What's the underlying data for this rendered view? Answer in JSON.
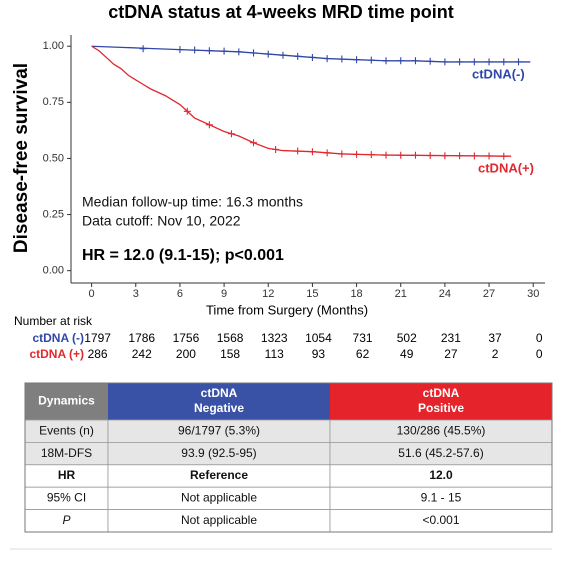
{
  "chart_data": {
    "type": "line",
    "title": "ctDNA status at 4-weeks MRD time point",
    "x_label": "Time from Surgery (Months)",
    "y_label": "Disease-free survival",
    "xlim": [
      -1.4,
      30.8
    ],
    "ylim": [
      -0.055,
      1.05
    ],
    "xticks": [
      0,
      3,
      6,
      9,
      12,
      15,
      18,
      21,
      24,
      27,
      30
    ],
    "yticks": [
      {
        "value": 0,
        "label": "0.00"
      },
      {
        "value": 0.25,
        "label": "0.25"
      },
      {
        "value": 0.5,
        "label": "0.50"
      },
      {
        "value": 0.75,
        "label": "0.75"
      },
      {
        "value": 1,
        "label": "1.00"
      }
    ],
    "annotations": [
      "Median follow-up time: 16.3 months",
      "Data cutoff: Nov 10, 2022",
      "HR = 12.0 (9.1-15); p<0.001"
    ],
    "series": [
      {
        "name": "ctDNA(-)",
        "color": "#3047a8",
        "x": [
          0,
          2,
          4,
          6,
          8,
          10,
          12,
          14,
          16,
          18,
          20,
          22,
          24,
          26,
          28,
          29.8
        ],
        "values": [
          1,
          0.995,
          0.99,
          0.985,
          0.98,
          0.975,
          0.965,
          0.955,
          0.945,
          0.94,
          0.935,
          0.935,
          0.93,
          0.93,
          0.93,
          0.93
        ],
        "censor": {
          "x": [
            3.5,
            6,
            7,
            8,
            9,
            10,
            11,
            12,
            13,
            14,
            15,
            16,
            17,
            18,
            19,
            20,
            21,
            22,
            23,
            24,
            25,
            26,
            27,
            28,
            29
          ],
          "values": [
            0.989,
            0.985,
            0.983,
            0.98,
            0.978,
            0.975,
            0.97,
            0.965,
            0.96,
            0.955,
            0.95,
            0.945,
            0.943,
            0.94,
            0.938,
            0.935,
            0.935,
            0.935,
            0.933,
            0.93,
            0.93,
            0.93,
            0.93,
            0.93,
            0.93
          ]
        }
      },
      {
        "name": "ctDNA(+)",
        "color": "#e0282e",
        "x": [
          0,
          0.5,
          1,
          1.5,
          2,
          2.5,
          3,
          3.5,
          4,
          5,
          6,
          7,
          8,
          9,
          10,
          11,
          12,
          13,
          15,
          17,
          20,
          28.5
        ],
        "values": [
          1,
          0.98,
          0.95,
          0.92,
          0.9,
          0.87,
          0.85,
          0.83,
          0.81,
          0.78,
          0.74,
          0.68,
          0.65,
          0.62,
          0.6,
          0.57,
          0.545,
          0.535,
          0.53,
          0.52,
          0.515,
          0.51
        ],
        "censor": {
          "x": [
            6.5,
            8,
            9.5,
            11,
            12.5,
            14,
            15,
            16,
            17,
            18,
            19,
            20,
            21,
            22,
            23,
            24,
            25,
            26,
            27,
            28
          ],
          "values": [
            0.71,
            0.65,
            0.61,
            0.57,
            0.54,
            0.533,
            0.53,
            0.525,
            0.52,
            0.518,
            0.517,
            0.515,
            0.514,
            0.514,
            0.513,
            0.512,
            0.512,
            0.511,
            0.511,
            0.51
          ]
        }
      }
    ]
  },
  "risk_table": {
    "title": "Number  at risk",
    "rows": [
      {
        "name": "ctDNA (-)",
        "values": [
          1797,
          1786,
          1756,
          1568,
          1323,
          1054,
          731,
          502,
          231,
          37,
          0
        ]
      },
      {
        "name": "ctDNA (+)",
        "values": [
          286,
          242,
          200,
          158,
          113,
          93,
          62,
          49,
          27,
          2,
          0
        ]
      }
    ]
  },
  "summary_table": {
    "header": [
      [
        "Dynamics"
      ],
      [
        "ctDNA",
        "Negative"
      ],
      [
        "ctDNA",
        "Positive"
      ]
    ],
    "rows": [
      [
        "Events (n)",
        "96/1797 (5.3%)",
        "130/286 (45.5%)"
      ],
      [
        "18M-DFS",
        "93.9 (92.5-95)",
        "51.6 (45.2-57.6)"
      ],
      [
        "HR",
        "Reference",
        "12.0"
      ],
      [
        "95% CI",
        "Not applicable",
        "9.1 - 15"
      ],
      [
        "P",
        "Not applicable",
        "<0.001"
      ]
    ]
  }
}
